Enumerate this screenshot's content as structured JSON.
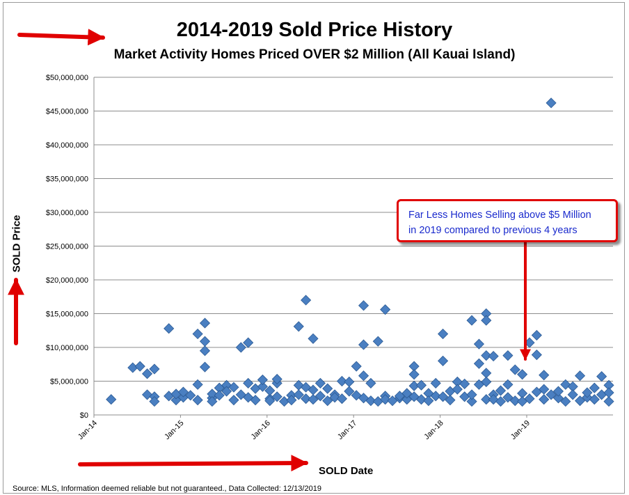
{
  "header": {
    "title": "2014-2019 Sold Price History",
    "subtitle": "Market Activity Homes Priced OVER $2 Million (All Kauai Island)"
  },
  "axes": {
    "ylabel": "SOLD Price",
    "xlabel": "SOLD Date"
  },
  "callout": {
    "line1": "Far Less Homes Selling above $5 Million",
    "line2": "in 2019 compared to previous 4 years"
  },
  "footer": {
    "source": "Source: MLS, Information deemed reliable but not guaranteed., Data Collected: 12/13/2019"
  },
  "colors": {
    "marker": "#4a7fc1",
    "marker_edge": "#2b5a94",
    "arrow": "#e00000",
    "grid": "#8c8c8c"
  },
  "chart_data": {
    "type": "scatter",
    "title": "2014-2019 Sold Price History",
    "subtitle": "Market Activity Homes Priced OVER $2 Million (All Kauai Island)",
    "xlabel": "SOLD Date",
    "ylabel": "SOLD Price",
    "ylim": [
      0,
      50000000
    ],
    "xlim": [
      "2014-01",
      "2019-12"
    ],
    "grid": true,
    "y_ticks": [
      "$0",
      "$5,000,000",
      "$10,000,000",
      "$15,000,000",
      "$20,000,000",
      "$25,000,000",
      "$30,000,000",
      "$35,000,000",
      "$40,000,000",
      "$45,000,000",
      "$50,000,000"
    ],
    "x_ticks": [
      "Jan-14",
      "Jan-15",
      "Jan-16",
      "Jan-17",
      "Jan-18",
      "Jan-19"
    ],
    "points": [
      [
        "2014-03",
        2300000
      ],
      [
        "2014-06",
        7000000
      ],
      [
        "2014-07",
        7200000
      ],
      [
        "2014-08",
        6100000
      ],
      [
        "2014-08",
        3000000
      ],
      [
        "2014-09",
        6800000
      ],
      [
        "2014-09",
        2700000
      ],
      [
        "2014-09",
        2000000
      ],
      [
        "2014-11",
        12800000
      ],
      [
        "2014-11",
        2800000
      ],
      [
        "2014-12",
        2200000
      ],
      [
        "2014-12",
        3100000
      ],
      [
        "2015-01",
        2600000
      ],
      [
        "2015-01",
        3400000
      ],
      [
        "2015-02",
        2900000
      ],
      [
        "2015-03",
        12000000
      ],
      [
        "2015-03",
        4500000
      ],
      [
        "2015-03",
        2200000
      ],
      [
        "2015-04",
        13600000
      ],
      [
        "2015-04",
        10900000
      ],
      [
        "2015-04",
        9500000
      ],
      [
        "2015-04",
        7100000
      ],
      [
        "2015-05",
        2500000
      ],
      [
        "2015-05",
        3100000
      ],
      [
        "2015-05",
        2000000
      ],
      [
        "2015-06",
        4000000
      ],
      [
        "2015-06",
        2900000
      ],
      [
        "2015-07",
        4400000
      ],
      [
        "2015-07",
        3500000
      ],
      [
        "2015-08",
        2200000
      ],
      [
        "2015-08",
        4100000
      ],
      [
        "2015-09",
        3000000
      ],
      [
        "2015-09",
        10000000
      ],
      [
        "2015-10",
        10700000
      ],
      [
        "2015-10",
        2600000
      ],
      [
        "2015-10",
        4700000
      ],
      [
        "2015-11",
        3900000
      ],
      [
        "2015-11",
        2200000
      ],
      [
        "2015-12",
        4200000
      ],
      [
        "2015-12",
        5200000
      ],
      [
        "2016-01",
        2400000
      ],
      [
        "2016-01",
        2100000
      ],
      [
        "2016-01",
        3600000
      ],
      [
        "2016-02",
        4700000
      ],
      [
        "2016-02",
        5300000
      ],
      [
        "2016-02",
        2700000
      ],
      [
        "2016-03",
        2000000
      ],
      [
        "2016-04",
        2900000
      ],
      [
        "2016-04",
        2200000
      ],
      [
        "2016-05",
        13100000
      ],
      [
        "2016-05",
        4400000
      ],
      [
        "2016-05",
        3000000
      ],
      [
        "2016-06",
        17000000
      ],
      [
        "2016-06",
        2400000
      ],
      [
        "2016-06",
        4100000
      ],
      [
        "2016-07",
        11300000
      ],
      [
        "2016-07",
        2300000
      ],
      [
        "2016-07",
        3700000
      ],
      [
        "2016-08",
        4700000
      ],
      [
        "2016-08",
        2800000
      ],
      [
        "2016-09",
        2100000
      ],
      [
        "2016-09",
        3900000
      ],
      [
        "2016-10",
        3000000
      ],
      [
        "2016-10",
        2600000
      ],
      [
        "2016-11",
        5000000
      ],
      [
        "2016-11",
        2400000
      ],
      [
        "2016-12",
        3500000
      ],
      [
        "2016-12",
        4900000
      ],
      [
        "2017-01",
        2900000
      ],
      [
        "2017-01",
        7200000
      ],
      [
        "2017-02",
        16200000
      ],
      [
        "2017-02",
        10400000
      ],
      [
        "2017-02",
        5800000
      ],
      [
        "2017-02",
        2500000
      ],
      [
        "2017-03",
        4700000
      ],
      [
        "2017-03",
        2100000
      ],
      [
        "2017-04",
        2000000
      ],
      [
        "2017-04",
        10900000
      ],
      [
        "2017-05",
        15600000
      ],
      [
        "2017-05",
        2800000
      ],
      [
        "2017-05",
        2300000
      ],
      [
        "2017-06",
        2100000
      ],
      [
        "2017-07",
        2500000
      ],
      [
        "2017-07",
        2800000
      ],
      [
        "2017-08",
        2300000
      ],
      [
        "2017-08",
        3200000
      ],
      [
        "2017-09",
        7200000
      ],
      [
        "2017-09",
        6000000
      ],
      [
        "2017-09",
        4300000
      ],
      [
        "2017-09",
        2700000
      ],
      [
        "2017-10",
        2300000
      ],
      [
        "2017-10",
        4400000
      ],
      [
        "2017-11",
        3200000
      ],
      [
        "2017-11",
        2100000
      ],
      [
        "2017-12",
        4700000
      ],
      [
        "2017-12",
        2800000
      ],
      [
        "2018-01",
        8000000
      ],
      [
        "2018-01",
        12000000
      ],
      [
        "2018-01",
        2700000
      ],
      [
        "2018-02",
        3500000
      ],
      [
        "2018-02",
        2200000
      ],
      [
        "2018-03",
        4900000
      ],
      [
        "2018-03",
        3800000
      ],
      [
        "2018-04",
        2700000
      ],
      [
        "2018-04",
        4600000
      ],
      [
        "2018-05",
        2000000
      ],
      [
        "2018-05",
        14000000
      ],
      [
        "2018-05",
        3000000
      ],
      [
        "2018-06",
        10500000
      ],
      [
        "2018-06",
        7600000
      ],
      [
        "2018-06",
        4500000
      ],
      [
        "2018-07",
        15000000
      ],
      [
        "2018-07",
        14000000
      ],
      [
        "2018-07",
        8800000
      ],
      [
        "2018-07",
        6200000
      ],
      [
        "2018-07",
        4900000
      ],
      [
        "2018-07",
        2300000
      ],
      [
        "2018-08",
        8700000
      ],
      [
        "2018-08",
        3000000
      ],
      [
        "2018-08",
        2300000
      ],
      [
        "2018-09",
        3600000
      ],
      [
        "2018-09",
        2000000
      ],
      [
        "2018-10",
        8800000
      ],
      [
        "2018-10",
        4500000
      ],
      [
        "2018-10",
        2600000
      ],
      [
        "2018-11",
        6700000
      ],
      [
        "2018-11",
        2100000
      ],
      [
        "2018-12",
        6000000
      ],
      [
        "2018-12",
        3200000
      ],
      [
        "2018-12",
        2000000
      ],
      [
        "2019-01",
        10700000
      ],
      [
        "2019-01",
        2400000
      ],
      [
        "2019-02",
        11800000
      ],
      [
        "2019-02",
        8900000
      ],
      [
        "2019-02",
        3400000
      ],
      [
        "2019-03",
        5900000
      ],
      [
        "2019-03",
        3800000
      ],
      [
        "2019-03",
        2300000
      ],
      [
        "2019-04",
        46200000
      ],
      [
        "2019-04",
        3000000
      ],
      [
        "2019-05",
        2500000
      ],
      [
        "2019-05",
        3500000
      ],
      [
        "2019-06",
        4500000
      ],
      [
        "2019-06",
        2000000
      ],
      [
        "2019-07",
        4200000
      ],
      [
        "2019-07",
        3000000
      ],
      [
        "2019-08",
        2100000
      ],
      [
        "2019-08",
        5800000
      ],
      [
        "2019-09",
        2600000
      ],
      [
        "2019-09",
        3300000
      ],
      [
        "2019-10",
        4000000
      ],
      [
        "2019-10",
        2300000
      ],
      [
        "2019-11",
        5700000
      ],
      [
        "2019-11",
        3000000
      ],
      [
        "2019-12",
        2000000
      ],
      [
        "2019-12",
        4400000
      ],
      [
        "2019-12",
        3300000
      ]
    ]
  }
}
